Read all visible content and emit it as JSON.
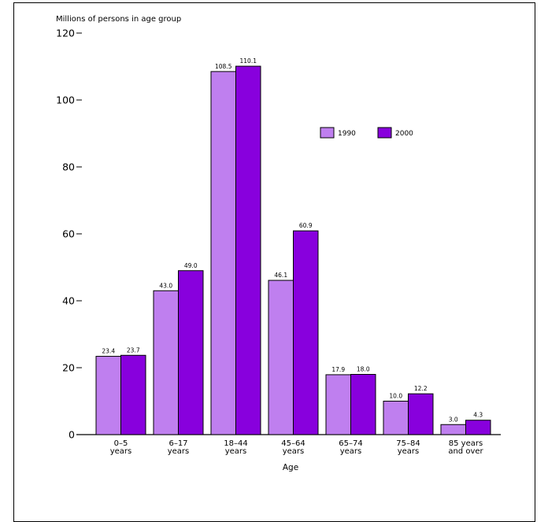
{
  "chart_data": {
    "type": "bar",
    "ylabel": "Millions of persons in age group",
    "xlabel": "Age",
    "ylim": [
      0,
      120
    ],
    "yticks": [
      0,
      20,
      40,
      60,
      80,
      100,
      120
    ],
    "grid": false,
    "legend_position": "top-right",
    "categories": [
      [
        "0–5",
        "years"
      ],
      [
        "6–17",
        "years"
      ],
      [
        "18–44",
        "years"
      ],
      [
        "45–64",
        "years"
      ],
      [
        "65–74",
        "years"
      ],
      [
        "75–84",
        "years"
      ],
      [
        "85 years",
        "and over"
      ]
    ],
    "series": [
      {
        "name": "1990",
        "color": "#bf7fef",
        "values": [
          23.4,
          43.0,
          108.5,
          46.1,
          17.9,
          10.0,
          3.0
        ],
        "labels": [
          "23.4",
          "43.0",
          "108.5",
          "46.1",
          "17.9",
          "10.0",
          "3.0"
        ]
      },
      {
        "name": "2000",
        "color": "#8800dd",
        "values": [
          23.7,
          49.0,
          110.1,
          60.9,
          18.0,
          12.2,
          4.3
        ],
        "labels": [
          "23.7",
          "49.0",
          "110.1",
          "60.9",
          "18.0",
          "12.2",
          "4.3"
        ]
      }
    ]
  }
}
